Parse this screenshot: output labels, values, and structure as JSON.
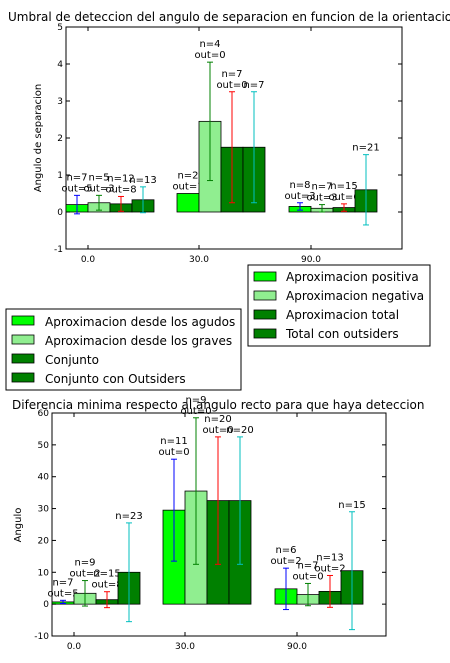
{
  "chart_data": [
    {
      "type": "bar",
      "title": "Umbral de deteccion del angulo de separacion en funcion de la orientacion",
      "xlabel": "",
      "ylabel": "Angulo de separacion",
      "categories": [
        "0.0",
        "30.0",
        "90.0"
      ],
      "ylim": [
        -1,
        5
      ],
      "yticks": [
        "-1",
        "0",
        "1",
        "2",
        "3",
        "4",
        "5"
      ],
      "grid": false,
      "legend_position": "below-right",
      "series": [
        {
          "name": "Aproximacion positiva",
          "color": "#00ff00",
          "errcolor": "#0000ff",
          "values": [
            0.2,
            0.5,
            0.15
          ],
          "errors": [
            0.25,
            0.0,
            0.1
          ],
          "labels": [
            [
              "n=7",
              "out=5"
            ],
            [
              "n=2",
              "out=1"
            ],
            [
              "n=8",
              "out=3"
            ]
          ]
        },
        {
          "name": "Aproximacion negativa",
          "color": "#90ee90",
          "errcolor": "#008000",
          "values": [
            0.25,
            2.45,
            0.1
          ],
          "errors": [
            0.2,
            1.6,
            0.1
          ],
          "labels": [
            [
              "n=5",
              "out=3"
            ],
            [
              "n=4",
              "out=0"
            ],
            [
              "n=7",
              "out=3"
            ]
          ]
        },
        {
          "name": "Aproximacion total",
          "color": "#008000",
          "errcolor": "#ff0000",
          "values": [
            0.22,
            1.75,
            0.12
          ],
          "errors": [
            0.2,
            1.5,
            0.1
          ],
          "labels": [
            [
              "n=12",
              "out=8"
            ],
            [
              "n=7",
              "out=0"
            ],
            [
              "n=15",
              "out=6"
            ]
          ]
        },
        {
          "name": "Total con outsiders",
          "color": "#008000",
          "errcolor": "#00bfbf",
          "values": [
            0.33,
            1.75,
            0.6
          ],
          "errors": [
            0.35,
            1.5,
            0.95
          ],
          "labels": [
            [
              "n=13",
              ""
            ],
            [
              "n=7",
              ""
            ],
            [
              "n=21",
              ""
            ]
          ]
        }
      ]
    },
    {
      "type": "bar",
      "title": "Diferencia minima respecto al angulo recto para que haya deteccion",
      "xlabel": "",
      "ylabel": "Angulo",
      "categories": [
        "0.0",
        "30.0",
        "90.0"
      ],
      "ylim": [
        -10,
        60
      ],
      "yticks": [
        "-10",
        "0",
        "10",
        "20",
        "30",
        "40",
        "50",
        "60"
      ],
      "grid": false,
      "legend_position": "above-left",
      "series": [
        {
          "name": "Aproximacion desde los agudos",
          "color": "#00ff00",
          "errcolor": "#0000ff",
          "values": [
            0.7,
            29.5,
            4.8
          ],
          "errors": [
            0.5,
            16,
            6.5
          ],
          "labels": [
            [
              "n=7",
              "out=5"
            ],
            [
              "n=11",
              "out=0"
            ],
            [
              "n=6",
              "out=2"
            ]
          ]
        },
        {
          "name": "Aproximacion desde los graves",
          "color": "#90ee90",
          "errcolor": "#008000",
          "values": [
            3.4,
            35.5,
            3.0
          ],
          "errors": [
            4.0,
            23,
            3.5
          ],
          "labels": [
            [
              "n=9",
              "out=2"
            ],
            [
              "n=9",
              "out=0"
            ],
            [
              "n=7",
              "out=0"
            ]
          ]
        },
        {
          "name": "Conjunto",
          "color": "#008000",
          "errcolor": "#ff0000",
          "values": [
            1.4,
            32.5,
            4.0
          ],
          "errors": [
            2.5,
            20,
            5.0
          ],
          "labels": [
            [
              "n=15",
              "out=8"
            ],
            [
              "n=20",
              "out=0"
            ],
            [
              "n=13",
              "out=2"
            ]
          ]
        },
        {
          "name": "Conjunto con Outsiders",
          "color": "#008000",
          "errcolor": "#00bfbf",
          "values": [
            10.0,
            32.5,
            10.5
          ],
          "errors": [
            15.5,
            20,
            18.5
          ],
          "labels": [
            [
              "n=23",
              ""
            ],
            [
              "n=20",
              ""
            ],
            [
              "n=15",
              ""
            ]
          ]
        }
      ]
    }
  ]
}
